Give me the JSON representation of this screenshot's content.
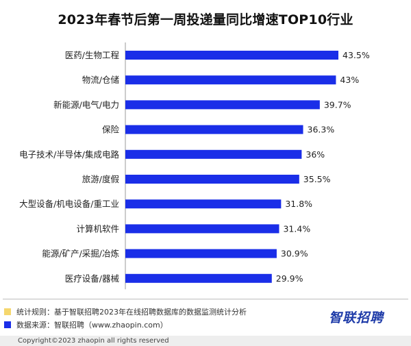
{
  "chart_data": {
    "type": "bar",
    "orientation": "horizontal",
    "title": "2023年春节后第一周投递量同比增速TOP10行业",
    "categories": [
      "医药/生物工程",
      "物流/仓储",
      "新能源/电气/电力",
      "保险",
      "电子技术/半导体/集成电路",
      "旅游/度假",
      "大型设备/机电设备/重工业",
      "计算机软件",
      "能源/矿产/采掘/冶炼",
      "医疗设备/器械"
    ],
    "values": [
      43.5,
      43,
      39.7,
      36.3,
      36,
      35.5,
      31.8,
      31.4,
      30.9,
      29.9
    ],
    "value_labels": [
      "43.5%",
      "43%",
      "39.7%",
      "36.3%",
      "36%",
      "35.5%",
      "31.8%",
      "31.4%",
      "30.9%",
      "29.9%"
    ],
    "xlim": [
      0,
      43.5
    ],
    "bar_color": "#1a2ee8",
    "grid": false
  },
  "notes": [
    {
      "label": "统计规则：基于智联招聘2023年在线招聘数据库的数据监测统计分析",
      "color": "#f5d76e"
    },
    {
      "label": "数据来源：智联招聘（www.zhaopin.com）",
      "color": "#1a2ee8"
    }
  ],
  "logo_text": "智联招聘",
  "copyright": "Copyright©2023 zhaopin all rights reserved"
}
